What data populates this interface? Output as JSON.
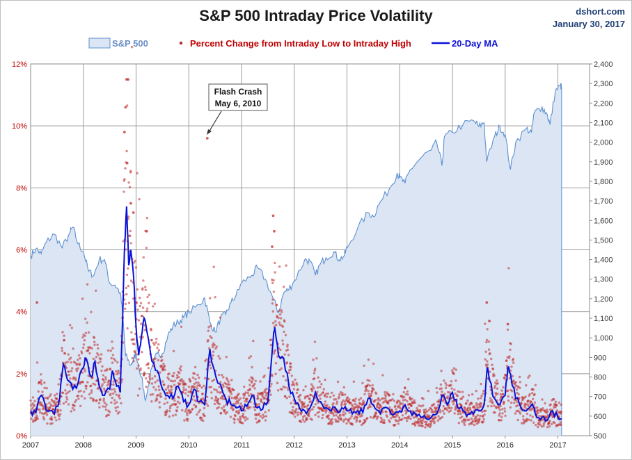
{
  "title": "S&P 500 Intraday Price Volatility",
  "source": {
    "site": "dshort.com",
    "date": "January 30, 2017"
  },
  "legend": {
    "sp500": "S&P 500",
    "pct": "Percent Change from Intraday Low to Intraday High",
    "ma": "20-Day MA"
  },
  "annotation": {
    "line1": "Flash Crash",
    "line2": "May 6, 2010"
  },
  "colors": {
    "sp500_fill": "#dbe5f3",
    "sp500_line": "#5b8fd0",
    "scatter": "#c0292a",
    "ma_line": "#0a10d6",
    "left_axis": "#c00000",
    "grid": "#9a9a9a"
  },
  "chart_data": {
    "type": "line",
    "x_ticks": [
      "2007",
      "2008",
      "2009",
      "2010",
      "2011",
      "2012",
      "2013",
      "2014",
      "2015",
      "2016",
      "2017"
    ],
    "left_axis": {
      "min": 0,
      "max": 12,
      "ticks": [
        "0%",
        "2%",
        "4%",
        "6%",
        "8%",
        "10%",
        "12%"
      ],
      "unit": "%"
    },
    "right_axis": {
      "min": 500,
      "max": 2400,
      "ticks": [
        "500",
        "600",
        "700",
        "800",
        "900",
        "1,000",
        "1,100",
        "1,200",
        "1,300",
        "1,400",
        "1,500",
        "1,600",
        "1,700",
        "1,800",
        "1,900",
        "2,000",
        "2,100",
        "2,200",
        "2,300",
        "2,400"
      ]
    },
    "grid": true,
    "legend_position": "top",
    "series": [
      {
        "name": "S&P 500",
        "axis": "right",
        "kind": "area",
        "points": [
          [
            2007.0,
            1420
          ],
          [
            2007.1,
            1455
          ],
          [
            2007.2,
            1430
          ],
          [
            2007.3,
            1490
          ],
          [
            2007.45,
            1530
          ],
          [
            2007.6,
            1460
          ],
          [
            2007.75,
            1540
          ],
          [
            2007.8,
            1565
          ],
          [
            2007.9,
            1480
          ],
          [
            2008.0,
            1440
          ],
          [
            2008.1,
            1340
          ],
          [
            2008.2,
            1320
          ],
          [
            2008.3,
            1400
          ],
          [
            2008.4,
            1400
          ],
          [
            2008.5,
            1280
          ],
          [
            2008.6,
            1270
          ],
          [
            2008.7,
            1230
          ],
          [
            2008.75,
            1110
          ],
          [
            2008.8,
            910
          ],
          [
            2008.9,
            860
          ],
          [
            2008.95,
            890
          ],
          [
            2009.0,
            920
          ],
          [
            2009.1,
            800
          ],
          [
            2009.18,
            680
          ],
          [
            2009.3,
            850
          ],
          [
            2009.4,
            920
          ],
          [
            2009.5,
            920
          ],
          [
            2009.6,
            1010
          ],
          [
            2009.7,
            1060
          ],
          [
            2009.8,
            1080
          ],
          [
            2009.9,
            1105
          ],
          [
            2010.0,
            1130
          ],
          [
            2010.2,
            1170
          ],
          [
            2010.3,
            1205
          ],
          [
            2010.4,
            1080
          ],
          [
            2010.5,
            1030
          ],
          [
            2010.6,
            1100
          ],
          [
            2010.7,
            1120
          ],
          [
            2010.8,
            1180
          ],
          [
            2010.9,
            1220
          ],
          [
            2011.0,
            1280
          ],
          [
            2011.2,
            1320
          ],
          [
            2011.3,
            1360
          ],
          [
            2011.45,
            1300
          ],
          [
            2011.6,
            1200
          ],
          [
            2011.7,
            1130
          ],
          [
            2011.8,
            1230
          ],
          [
            2011.9,
            1250
          ],
          [
            2012.0,
            1290
          ],
          [
            2012.2,
            1400
          ],
          [
            2012.3,
            1390
          ],
          [
            2012.4,
            1320
          ],
          [
            2012.5,
            1380
          ],
          [
            2012.6,
            1410
          ],
          [
            2012.75,
            1440
          ],
          [
            2012.85,
            1400
          ],
          [
            2012.95,
            1420
          ],
          [
            2013.0,
            1460
          ],
          [
            2013.2,
            1560
          ],
          [
            2013.4,
            1640
          ],
          [
            2013.5,
            1620
          ],
          [
            2013.6,
            1680
          ],
          [
            2013.8,
            1760
          ],
          [
            2013.95,
            1840
          ],
          [
            2014.0,
            1820
          ],
          [
            2014.1,
            1790
          ],
          [
            2014.2,
            1860
          ],
          [
            2014.4,
            1920
          ],
          [
            2014.6,
            1960
          ],
          [
            2014.7,
            2000
          ],
          [
            2014.8,
            1880
          ],
          [
            2014.85,
            2030
          ],
          [
            2015.0,
            2050
          ],
          [
            2015.2,
            2090
          ],
          [
            2015.4,
            2110
          ],
          [
            2015.5,
            2080
          ],
          [
            2015.6,
            2100
          ],
          [
            2015.65,
            1900
          ],
          [
            2015.8,
            2030
          ],
          [
            2015.9,
            2080
          ],
          [
            2016.0,
            2040
          ],
          [
            2016.1,
            1860
          ],
          [
            2016.2,
            2000
          ],
          [
            2016.4,
            2070
          ],
          [
            2016.5,
            2050
          ],
          [
            2016.55,
            2150
          ],
          [
            2016.7,
            2180
          ],
          [
            2016.8,
            2140
          ],
          [
            2016.85,
            2090
          ],
          [
            2016.95,
            2260
          ],
          [
            2017.05,
            2290
          ],
          [
            2017.07,
            2280
          ]
        ]
      },
      {
        "name": "Percent Change from Intraday Low to Intraday High",
        "axis": "left",
        "kind": "scatter",
        "sample_outliers": [
          [
            2008.82,
            11.5
          ],
          [
            2008.85,
            11.5
          ],
          [
            2008.8,
            10.6
          ],
          [
            2008.78,
            9.8
          ],
          [
            2008.83,
            8.8
          ],
          [
            2008.9,
            7.5
          ],
          [
            2008.95,
            7.2
          ],
          [
            2009.2,
            6.6
          ],
          [
            2007.12,
            4.3
          ],
          [
            2010.35,
            9.6
          ],
          [
            2011.6,
            7.1
          ],
          [
            2011.62,
            6.6
          ],
          [
            2011.58,
            6.1
          ],
          [
            2015.65,
            4.3
          ],
          [
            2015.7,
            3.7
          ],
          [
            2016.05,
            3.6
          ]
        ]
      },
      {
        "name": "20-Day MA",
        "axis": "left",
        "kind": "line",
        "points": [
          [
            2007.0,
            0.8
          ],
          [
            2007.1,
            0.75
          ],
          [
            2007.2,
            1.3
          ],
          [
            2007.3,
            0.8
          ],
          [
            2007.45,
            0.7
          ],
          [
            2007.55,
            1.2
          ],
          [
            2007.62,
            2.3
          ],
          [
            2007.7,
            1.8
          ],
          [
            2007.8,
            1.5
          ],
          [
            2007.9,
            1.7
          ],
          [
            2008.0,
            2.2
          ],
          [
            2008.05,
            2.5
          ],
          [
            2008.15,
            1.9
          ],
          [
            2008.22,
            2.4
          ],
          [
            2008.3,
            1.6
          ],
          [
            2008.4,
            1.3
          ],
          [
            2008.5,
            1.5
          ],
          [
            2008.55,
            2.1
          ],
          [
            2008.6,
            1.8
          ],
          [
            2008.7,
            1.4
          ],
          [
            2008.74,
            3.5
          ],
          [
            2008.78,
            6.0
          ],
          [
            2008.82,
            7.4
          ],
          [
            2008.86,
            5.5
          ],
          [
            2008.9,
            6.0
          ],
          [
            2008.95,
            5.2
          ],
          [
            2009.0,
            3.5
          ],
          [
            2009.05,
            2.6
          ],
          [
            2009.1,
            3.2
          ],
          [
            2009.15,
            3.8
          ],
          [
            2009.2,
            3.4
          ],
          [
            2009.3,
            2.4
          ],
          [
            2009.4,
            2.1
          ],
          [
            2009.5,
            1.5
          ],
          [
            2009.6,
            1.3
          ],
          [
            2009.7,
            1.2
          ],
          [
            2009.8,
            1.6
          ],
          [
            2009.9,
            1.1
          ],
          [
            2010.0,
            1.0
          ],
          [
            2010.1,
            1.5
          ],
          [
            2010.2,
            1.1
          ],
          [
            2010.3,
            1.0
          ],
          [
            2010.4,
            2.8
          ],
          [
            2010.45,
            2.3
          ],
          [
            2010.55,
            1.7
          ],
          [
            2010.7,
            1.2
          ],
          [
            2010.8,
            1.0
          ],
          [
            2010.9,
            0.9
          ],
          [
            2011.0,
            0.8
          ],
          [
            2011.1,
            0.95
          ],
          [
            2011.2,
            1.3
          ],
          [
            2011.3,
            0.9
          ],
          [
            2011.4,
            0.85
          ],
          [
            2011.5,
            1.1
          ],
          [
            2011.6,
            3.1
          ],
          [
            2011.63,
            3.5
          ],
          [
            2011.7,
            2.6
          ],
          [
            2011.8,
            2.5
          ],
          [
            2011.9,
            1.6
          ],
          [
            2012.0,
            1.2
          ],
          [
            2012.1,
            0.9
          ],
          [
            2012.2,
            0.8
          ],
          [
            2012.3,
            0.9
          ],
          [
            2012.4,
            1.4
          ],
          [
            2012.5,
            1.1
          ],
          [
            2012.6,
            0.9
          ],
          [
            2012.7,
            0.8
          ],
          [
            2012.8,
            0.85
          ],
          [
            2012.9,
            0.9
          ],
          [
            2013.0,
            0.8
          ],
          [
            2013.1,
            0.7
          ],
          [
            2013.2,
            0.8
          ],
          [
            2013.3,
            0.75
          ],
          [
            2013.4,
            1.2
          ],
          [
            2013.5,
            1.0
          ],
          [
            2013.6,
            0.8
          ],
          [
            2013.7,
            0.9
          ],
          [
            2013.8,
            0.85
          ],
          [
            2013.9,
            0.7
          ],
          [
            2014.0,
            0.8
          ],
          [
            2014.1,
            1.0
          ],
          [
            2014.2,
            0.8
          ],
          [
            2014.3,
            0.7
          ],
          [
            2014.4,
            0.6
          ],
          [
            2014.5,
            0.55
          ],
          [
            2014.6,
            0.6
          ],
          [
            2014.7,
            0.7
          ],
          [
            2014.8,
            1.3
          ],
          [
            2014.9,
            1.0
          ],
          [
            2015.0,
            1.4
          ],
          [
            2015.1,
            0.9
          ],
          [
            2015.2,
            0.8
          ],
          [
            2015.3,
            0.7
          ],
          [
            2015.4,
            0.7
          ],
          [
            2015.5,
            0.8
          ],
          [
            2015.6,
            1.0
          ],
          [
            2015.66,
            2.2
          ],
          [
            2015.7,
            1.8
          ],
          [
            2015.8,
            1.2
          ],
          [
            2015.9,
            1.0
          ],
          [
            2016.0,
            1.3
          ],
          [
            2016.05,
            2.2
          ],
          [
            2016.1,
            2.0
          ],
          [
            2016.2,
            1.2
          ],
          [
            2016.3,
            0.9
          ],
          [
            2016.4,
            0.8
          ],
          [
            2016.5,
            1.0
          ],
          [
            2016.55,
            0.9
          ],
          [
            2016.6,
            0.6
          ],
          [
            2016.7,
            0.6
          ],
          [
            2016.8,
            0.5
          ],
          [
            2016.9,
            0.8
          ],
          [
            2017.0,
            0.6
          ],
          [
            2017.07,
            0.55
          ]
        ]
      }
    ]
  }
}
